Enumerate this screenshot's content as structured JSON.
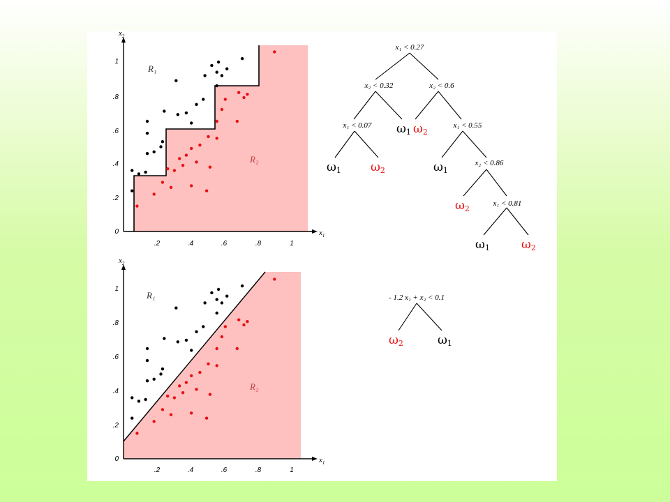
{
  "top_plot": {
    "y_axis_label": "x",
    "y_axis_sub": "2",
    "x_axis_label": "x",
    "x_axis_sub": "1",
    "y_ticks": [
      "1",
      ".8",
      ".6",
      ".4",
      ".2",
      "0"
    ],
    "x_ticks": [
      ".2",
      ".4",
      ".6",
      ".8",
      "1"
    ],
    "region1_label": "R₁",
    "region2_label": "R₂"
  },
  "bottom_plot": {
    "y_axis_label": "x",
    "y_axis_sub": "2",
    "x_axis_label": "x",
    "x_axis_sub": "1",
    "y_ticks": [
      "1",
      ".8",
      ".6",
      ".4",
      ".2",
      "0"
    ],
    "x_ticks": [
      ".2",
      ".4",
      ".6",
      ".8",
      "1"
    ],
    "region1_label": "R₁",
    "region2_label": "R₂"
  },
  "top_tree": {
    "conditions": [
      "x₁ < 0.27",
      "x₂ < 0.32",
      "x₂ < 0.6",
      "x₁ < 0.07",
      "x₁ < 0.55",
      "x₂ < 0.86",
      "x₁ < 0.81"
    ],
    "leaves": [
      {
        "symbol": "ω",
        "sub": "1",
        "class": "omega-1"
      },
      {
        "symbol": "ω",
        "sub": "2",
        "class": "omega-2"
      },
      {
        "symbol": "ω",
        "sub": "1",
        "class": "omega-1"
      },
      {
        "symbol": "ω",
        "sub": "2",
        "class": "omega-2"
      },
      {
        "symbol": "ω",
        "sub": "1",
        "class": "omega-1"
      },
      {
        "symbol": "ω",
        "sub": "2",
        "class": "omega-2"
      },
      {
        "symbol": "ω",
        "sub": "1",
        "class": "omega-1"
      },
      {
        "symbol": "ω",
        "sub": "2",
        "class": "omega-2"
      }
    ]
  },
  "bottom_tree": {
    "condition": "- 1.2 x₁ + x₂ < 0.1",
    "leaves": [
      {
        "symbol": "ω",
        "sub": "2",
        "class": "omega-2"
      },
      {
        "symbol": "ω",
        "sub": "1",
        "class": "omega-1"
      }
    ]
  },
  "colors": {
    "omega_1": "#000000",
    "omega_2": "#e81010",
    "region_2_fill": "#ffc0c0",
    "region_1_label": "#333333",
    "region_2_label": "#c04040"
  },
  "points": {
    "class_1": [
      [
        0.05,
        0.36
      ],
      [
        0.05,
        0.24
      ],
      [
        0.09,
        0.34
      ],
      [
        0.13,
        0.35
      ],
      [
        0.14,
        0.46
      ],
      [
        0.14,
        0.58
      ],
      [
        0.14,
        0.65
      ],
      [
        0.18,
        0.47
      ],
      [
        0.22,
        0.5
      ],
      [
        0.23,
        0.53
      ],
      [
        0.24,
        0.71
      ],
      [
        0.31,
        0.89
      ],
      [
        0.32,
        0.69
      ],
      [
        0.37,
        0.7
      ],
      [
        0.4,
        0.64
      ],
      [
        0.43,
        0.75
      ],
      [
        0.47,
        0.78
      ],
      [
        0.48,
        0.92
      ],
      [
        0.52,
        0.98
      ],
      [
        0.55,
        0.94
      ],
      [
        0.55,
        0.86
      ],
      [
        0.56,
        1.0
      ],
      [
        0.58,
        0.92
      ],
      [
        0.61,
        0.96
      ],
      [
        0.7,
        1.02
      ]
    ],
    "class_2": [
      [
        0.08,
        0.15
      ],
      [
        0.18,
        0.22
      ],
      [
        0.23,
        0.29
      ],
      [
        0.26,
        0.37
      ],
      [
        0.28,
        0.26
      ],
      [
        0.3,
        0.36
      ],
      [
        0.33,
        0.43
      ],
      [
        0.35,
        0.39
      ],
      [
        0.37,
        0.45
      ],
      [
        0.4,
        0.27
      ],
      [
        0.4,
        0.49
      ],
      [
        0.43,
        0.41
      ],
      [
        0.45,
        0.51
      ],
      [
        0.49,
        0.24
      ],
      [
        0.5,
        0.56
      ],
      [
        0.51,
        0.38
      ],
      [
        0.55,
        0.55
      ],
      [
        0.55,
        0.65
      ],
      [
        0.58,
        0.72
      ],
      [
        0.6,
        0.78
      ],
      [
        0.67,
        0.65
      ],
      [
        0.68,
        0.82
      ],
      [
        0.71,
        0.79
      ],
      [
        0.73,
        0.81
      ],
      [
        0.89,
        1.06
      ]
    ]
  }
}
